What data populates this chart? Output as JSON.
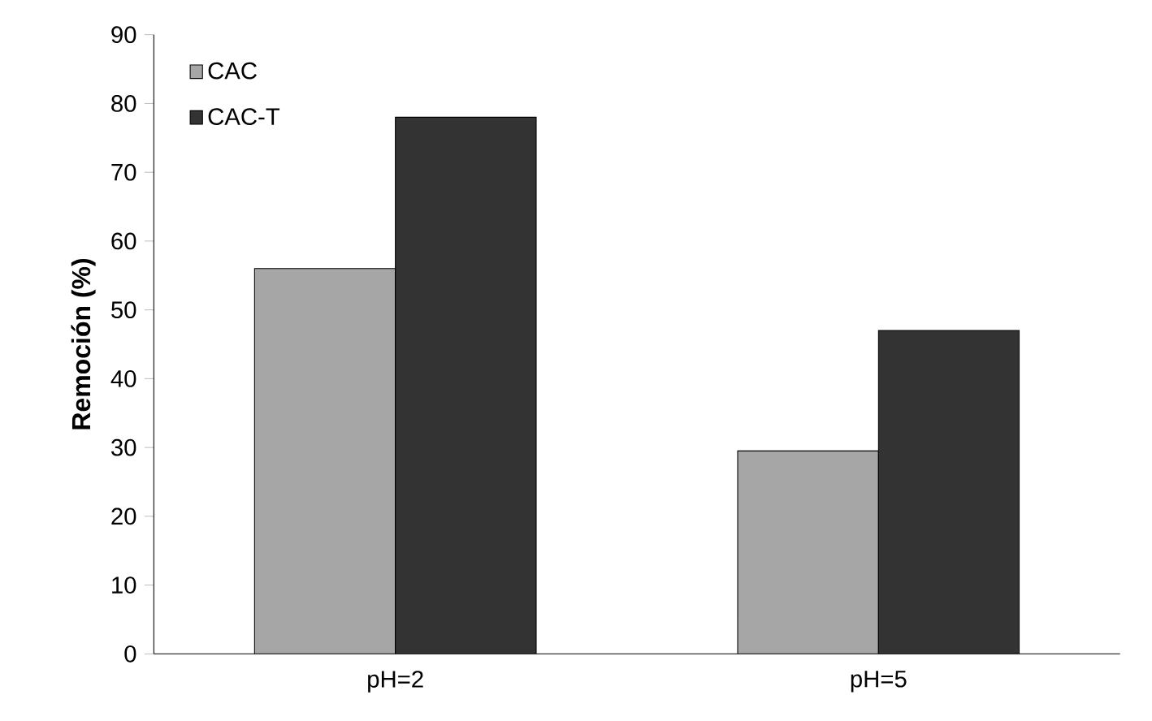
{
  "chart_data": {
    "type": "bar",
    "ylabel": "Remoción (%)",
    "categories": [
      "pH=2",
      "pH=5"
    ],
    "series": [
      {
        "name": "CAC",
        "color": "#a6a6a6",
        "values": [
          56,
          29.5
        ]
      },
      {
        "name": "CAC-T",
        "color": "#333333",
        "values": [
          78,
          47
        ]
      }
    ],
    "ylim": [
      0,
      90
    ],
    "yticks": [
      0,
      10,
      20,
      30,
      40,
      50,
      60,
      70,
      80,
      90
    ],
    "legend": "top left"
  }
}
